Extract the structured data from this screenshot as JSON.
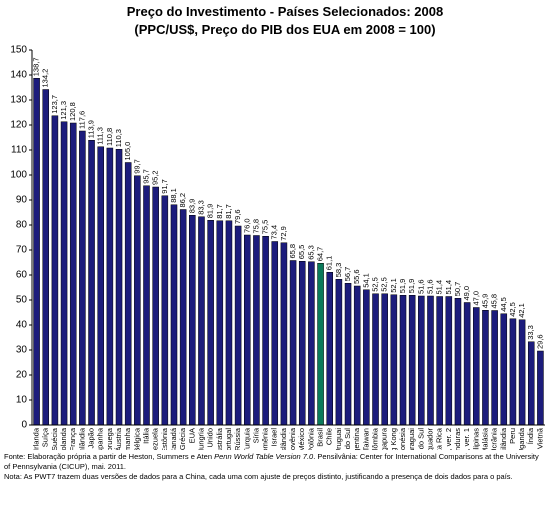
{
  "chart_data": {
    "type": "bar",
    "title": [
      "Preço do Investimento - Países Selecionados: 2008",
      "(PPC/US$, Preço do PIB dos EUA em 2008 = 100)"
    ],
    "categories": [
      "Irlanda",
      "Suíça",
      "Suécia",
      "Holanda",
      "França",
      "Finlândia",
      "Japão",
      "Espanha",
      "Noruega",
      "Áustria",
      "Alemanha",
      "Bélgica",
      "Itália",
      "Venezuela",
      "Estônia",
      "Canadá",
      "Grécia",
      "EUA",
      "Hungria",
      "Reino Unido",
      "Austrália",
      "Portugal",
      "Rússia",
      "Turquia",
      "Síria",
      "Romênia",
      "Israel",
      "Islândia",
      "Eslovênia",
      "México",
      "Polônia",
      "Brasil",
      "Chile",
      "Uruguai",
      "África do Sul",
      "Argentina",
      "Taiwan",
      "Colômbia",
      "Cingapura",
      "Hong Kong",
      "Indonésia",
      "Paraguai",
      "Coréia do Sul",
      "Equador",
      "Costa Rica",
      "China, ver. 2",
      "Honduras",
      "China, ver. 1",
      "Filipinas",
      "Malásia",
      "Ucrânia",
      "Tailândia",
      "Peru",
      "Uganda",
      "Índia",
      "Vietnã"
    ],
    "values": [
      138.7,
      134.2,
      123.7,
      121.3,
      120.8,
      117.6,
      113.9,
      111.3,
      110.8,
      110.3,
      105.0,
      99.7,
      95.7,
      95.2,
      91.7,
      88.1,
      86.2,
      83.9,
      83.3,
      81.9,
      81.7,
      81.7,
      79.6,
      76.0,
      75.8,
      75.5,
      73.4,
      72.9,
      65.8,
      65.5,
      65.3,
      64.7,
      61.1,
      58.3,
      56.7,
      55.6,
      54.1,
      52.5,
      52.5,
      52.1,
      51.9,
      51.9,
      51.6,
      51.6,
      51.4,
      51.4,
      50.7,
      49.0,
      47.0,
      45.9,
      45.8,
      44.5,
      42.5,
      42.1,
      33.3,
      29.6
    ],
    "value_labels": [
      "138,7",
      "134,2",
      "123,7",
      "121,3",
      "120,8",
      "117,6",
      "113,9",
      "111,3",
      "110,8",
      "110,3",
      "105,0",
      "99,7",
      "95,7",
      "95,2",
      "91,7",
      "88,1",
      "86,2",
      "83,9",
      "83,3",
      "81,9",
      "81,7",
      "81,7",
      "79,6",
      "76,0",
      "75,8",
      "75,5",
      "73,4",
      "72,9",
      "65,8",
      "65,5",
      "65,3",
      "64,7",
      "61,1",
      "58,3",
      "56,7",
      "55,6",
      "54,1",
      "52,5",
      "52,5",
      "52,1",
      "51,9",
      "51,9",
      "51,6",
      "51,6",
      "51,4",
      "51,4",
      "50,7",
      "49,0",
      "47,0",
      "45,9",
      "45,8",
      "44,5",
      "42,5",
      "42,1",
      "33,3",
      "29,6"
    ],
    "colors": [
      "#1c1c7c",
      "#1c1c7c",
      "#1c1c7c",
      "#1c1c7c",
      "#1c1c7c",
      "#1c1c7c",
      "#1c1c7c",
      "#1c1c7c",
      "#1c1c7c",
      "#1c1c7c",
      "#1c1c7c",
      "#1c1c7c",
      "#1c1c7c",
      "#1c1c7c",
      "#1c1c7c",
      "#1c1c7c",
      "#1c1c7c",
      "#1c1c7c",
      "#1c1c7c",
      "#1c1c7c",
      "#1c1c7c",
      "#1c1c7c",
      "#1c1c7c",
      "#1c1c7c",
      "#1c1c7c",
      "#1c1c7c",
      "#1c1c7c",
      "#1c1c7c",
      "#1c1c7c",
      "#1c1c7c",
      "#1c1c7c",
      "#0a7a5a",
      "#1c1c7c",
      "#1c1c7c",
      "#1c1c7c",
      "#1c1c7c",
      "#1c1c7c",
      "#1c1c7c",
      "#1c1c7c",
      "#1c1c7c",
      "#1c1c7c",
      "#1c1c7c",
      "#1c1c7c",
      "#1c1c7c",
      "#1c1c7c",
      "#1c1c7c",
      "#1c1c7c",
      "#1c1c7c",
      "#1c1c7c",
      "#1c1c7c",
      "#1c1c7c",
      "#1c1c7c",
      "#1c1c7c",
      "#1c1c7c",
      "#1c1c7c",
      "#1c1c7c"
    ],
    "ylim": [
      0,
      150
    ],
    "yticks": [
      0,
      10,
      20,
      30,
      40,
      50,
      60,
      70,
      80,
      90,
      100,
      110,
      120,
      130,
      140,
      150
    ],
    "grid": false,
    "source": [
      "Fonte: Elaboração própria a partir de Heston, Summers e Aten ",
      "Penn World Table Version 7.0",
      ". Pensilvânia: Center for International Comparisons at the University of Pennsylvania (CICUP), mai. 2011."
    ],
    "note": "Nota: As PWT7 trazem duas versões de dados para a China, cada uma com ajuste de preços distinto, justificando a presença de dois dados para o país."
  }
}
